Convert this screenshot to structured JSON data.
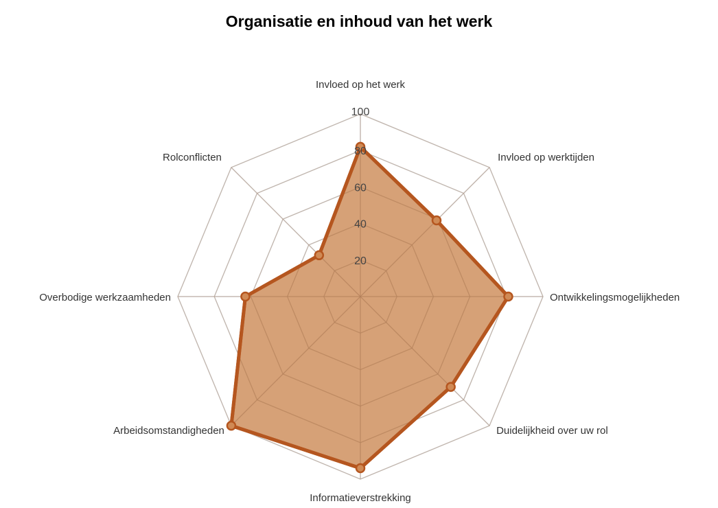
{
  "chart_data": {
    "type": "radar",
    "title": "Organisatie en inhoud van het werk",
    "categories": [
      "Invloed op het werk",
      "Invloed op werktijden",
      "Ontwikkelingsmogelijkheden",
      "Duidelijkheid over uw rol",
      "Informatieverstrekking",
      "Arbeidsomstandigheden",
      "Overbodige werkzaamheden",
      "Rolconflicten"
    ],
    "values": [
      82,
      59,
      81,
      70,
      94,
      100,
      63,
      32
    ],
    "rlim": [
      0,
      100
    ],
    "ticks": [
      "20",
      "40",
      "60",
      "80",
      "100"
    ],
    "grid": true,
    "legend": "none",
    "colors": {
      "fill": "#c8824a",
      "stroke": "#b5561f",
      "grid": "#d0d0d0"
    }
  }
}
